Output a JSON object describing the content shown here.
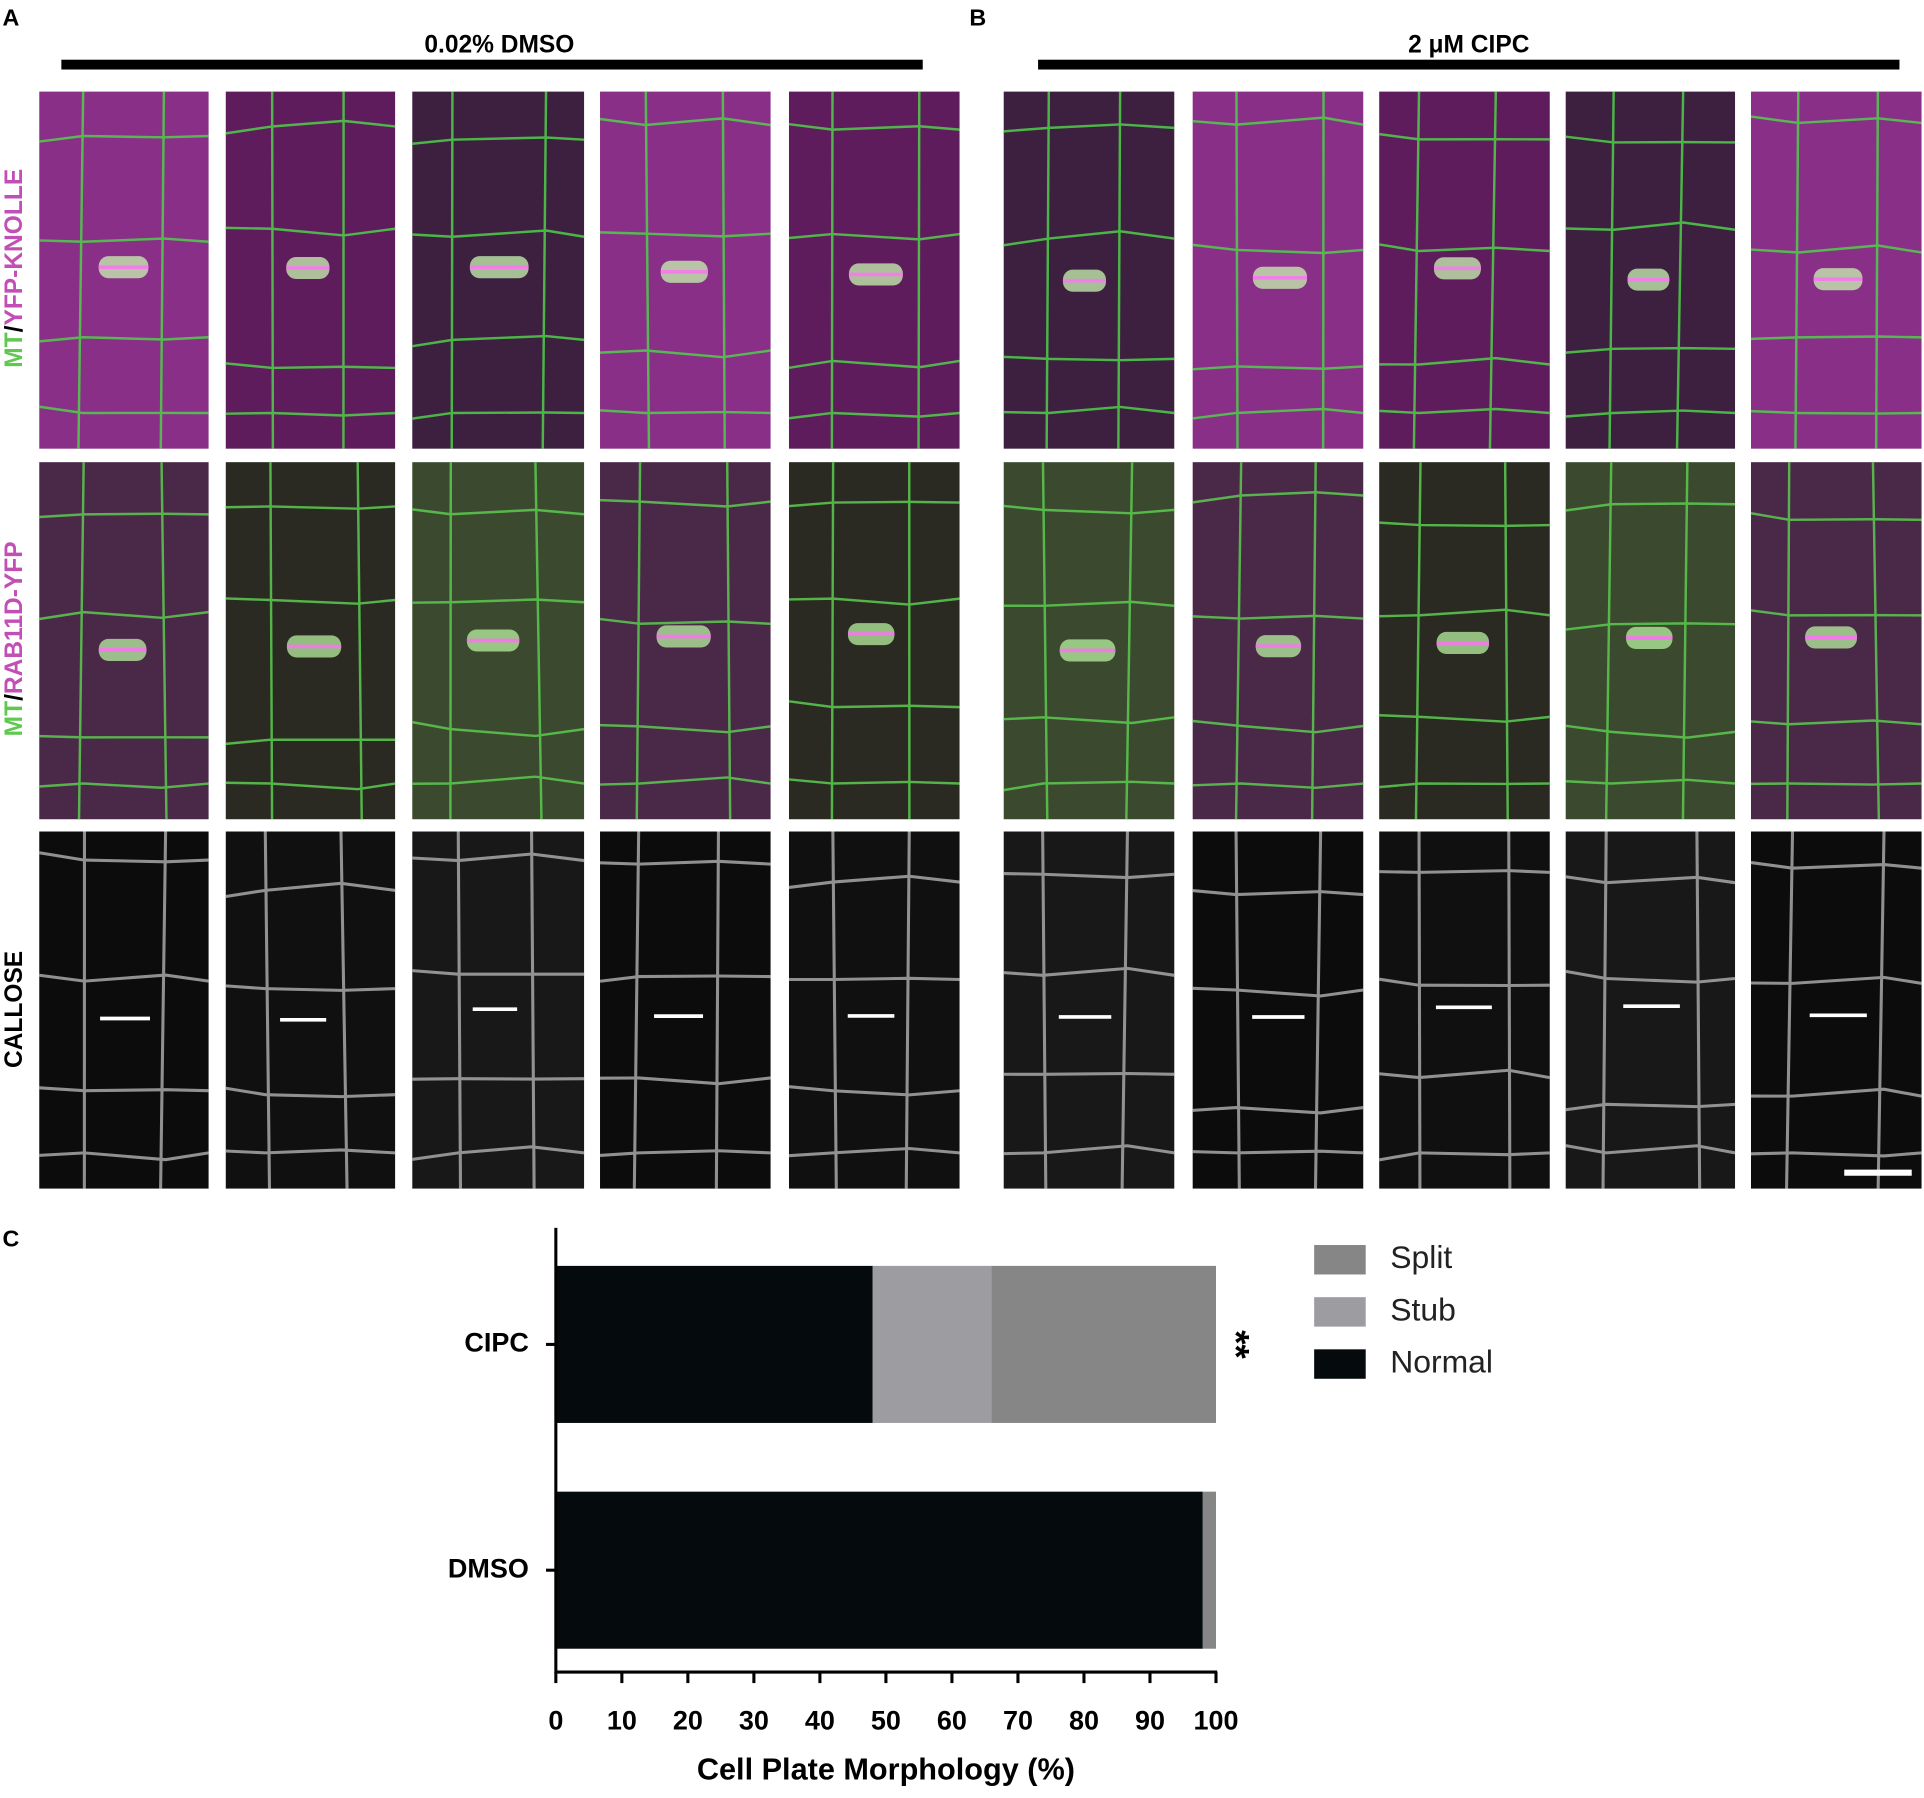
{
  "panels": {
    "a": "A",
    "b": "B",
    "c": "C"
  },
  "treatments": [
    "0.02% DMSO",
    "2 μM CIPC"
  ],
  "row_labels": [
    [
      "MT",
      "/",
      "YFP-KNOLLE"
    ],
    [
      "MT",
      "/",
      "RAB11D-YFP"
    ],
    [
      "CALLOSE"
    ]
  ],
  "chart_data": {
    "type": "bar",
    "orientation": "horizontal",
    "stacked": true,
    "categories": [
      "CIPC",
      "DMSO"
    ],
    "series": [
      {
        "name": "Normal",
        "color": "#050a0c",
        "values": [
          48,
          98
        ],
        "significance": [
          "**",
          null
        ]
      },
      {
        "name": "Stub",
        "color": "#9d9da1",
        "values": [
          18,
          0
        ],
        "significance": [
          "**",
          null
        ]
      },
      {
        "name": "Split",
        "color": "#868686",
        "values": [
          34,
          2
        ],
        "significance": [
          "**",
          null
        ]
      }
    ],
    "xlabel": "Cell Plate Morphology (%)",
    "xlim": [
      0,
      100
    ],
    "xticks": [
      0,
      10,
      20,
      30,
      40,
      50,
      60,
      70,
      80,
      90,
      100
    ],
    "legend": "right",
    "grid": false
  }
}
